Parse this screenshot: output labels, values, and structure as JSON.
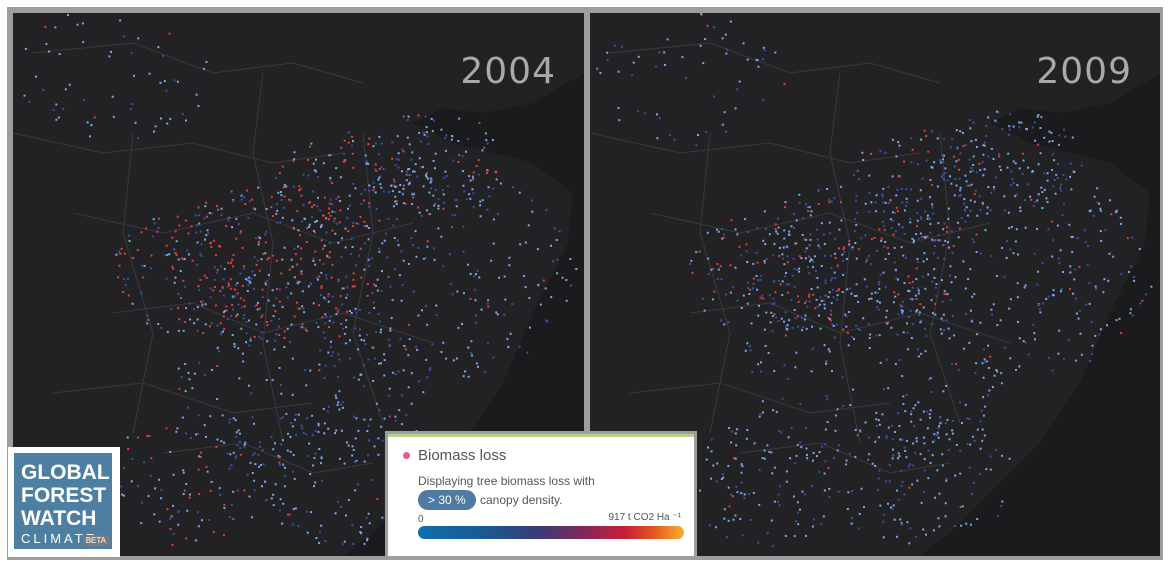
{
  "panels": [
    {
      "year": "2004",
      "intensity": 1.0
    },
    {
      "year": "2009",
      "intensity": 0.55
    }
  ],
  "logo": {
    "line1": "GLOBAL",
    "line2": "FOREST",
    "line3": "WATCH",
    "line4": "CLIMATE",
    "beta": "BETA"
  },
  "legend": {
    "title": "Biomass loss",
    "description": "Displaying tree biomass loss with",
    "threshold": "> 30 %",
    "description_suffix": "canopy density.",
    "scale_min": "0",
    "scale_max": "917 t CO2 Ha ⁻¹"
  },
  "colors": {
    "map_background": "#1b1b1d",
    "land": "#222224",
    "borders": "#3a3a3e",
    "loss_low": "#7aa9e8",
    "loss_mid": "#3b4fa8",
    "loss_high": "#e0403a",
    "brand": "#4d7fa3"
  }
}
